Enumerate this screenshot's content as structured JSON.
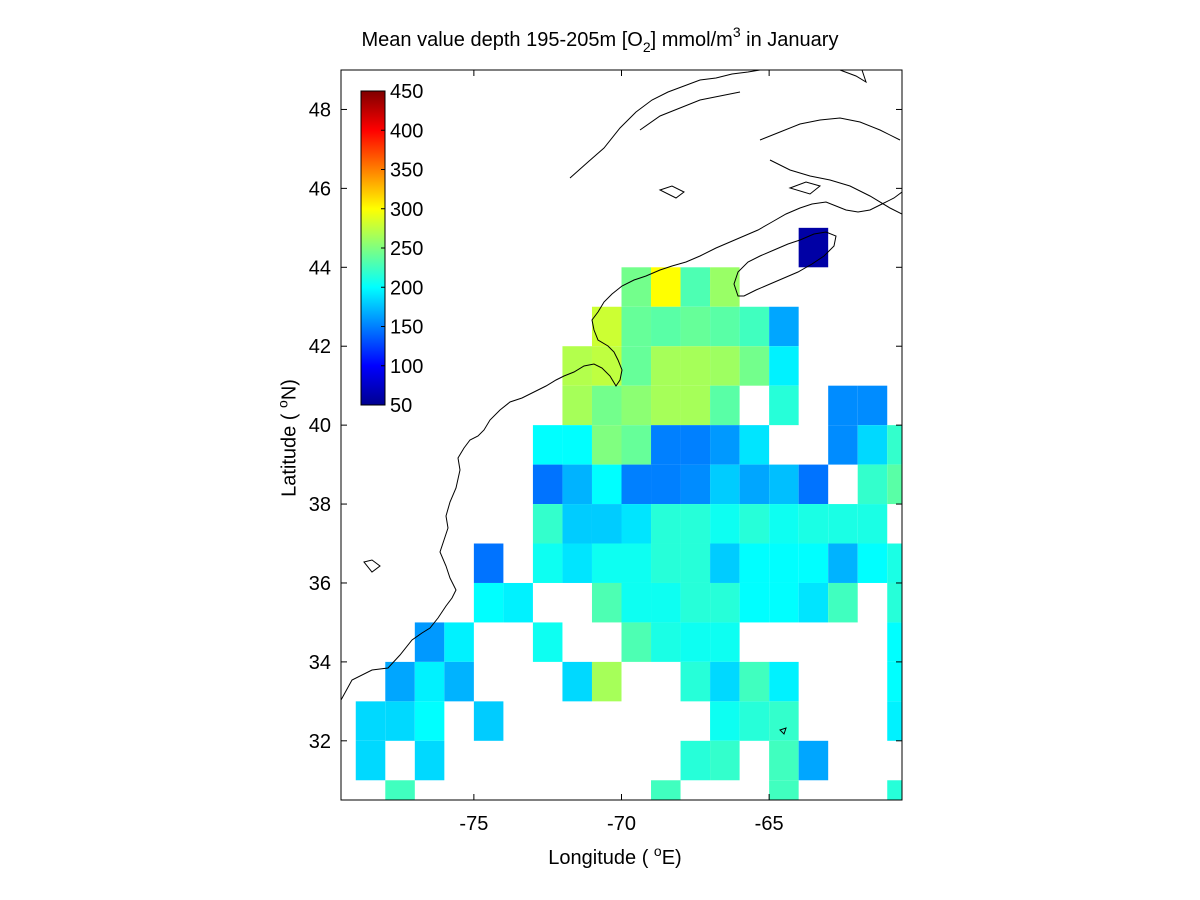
{
  "title": {
    "prefix": "Mean value depth 195-205m [O",
    "subscript": "2",
    "middle": "] mmol/m",
    "superscript": "3",
    "suffix": " in January"
  },
  "xlabel": {
    "prefix": "Longitude ( ",
    "superscript": "o",
    "suffix": "E)"
  },
  "ylabel": {
    "prefix": "Latitude ( ",
    "superscript": "o",
    "suffix": "N)"
  },
  "map": {
    "lon_range": [
      -79.5,
      -60.5
    ],
    "lat_range": [
      30.5,
      49.0
    ],
    "x_ticks": [
      -75,
      -70,
      -65
    ],
    "y_ticks": [
      32,
      34,
      36,
      38,
      40,
      42,
      44,
      46,
      48
    ],
    "colormap": "jet",
    "color_limits": [
      50,
      450
    ],
    "colorbar_ticks": [
      50,
      100,
      150,
      200,
      250,
      300,
      350,
      400,
      450
    ],
    "colorbar_position": "top-left",
    "cell_size_deg": 1,
    "coastline_color": "#000000"
  },
  "chart_data": {
    "type": "heatmap",
    "title": "Mean value depth 195-205m [O2] mmol/m3 in January",
    "xlabel": "Longitude ( oE)",
    "ylabel": "Latitude ( oN)",
    "xlim": [
      -79.5,
      -60.5
    ],
    "ylim": [
      30.5,
      49.0
    ],
    "clim": [
      50,
      450
    ],
    "cells_note": "cells are 1x1 degree boxes given by lower-left corner [lon, lat, value]",
    "cells": [
      [
        -64,
        44,
        60
      ],
      [
        -70,
        43,
        245
      ],
      [
        -69,
        43,
        300
      ],
      [
        -68,
        43,
        230
      ],
      [
        -67,
        43,
        260
      ],
      [
        -71,
        42,
        280
      ],
      [
        -70,
        42,
        240
      ],
      [
        -69,
        42,
        235
      ],
      [
        -68,
        42,
        240
      ],
      [
        -67,
        42,
        235
      ],
      [
        -66,
        42,
        225
      ],
      [
        -65,
        42,
        165
      ],
      [
        -72,
        41,
        270
      ],
      [
        -71,
        41,
        275
      ],
      [
        -70,
        41,
        240
      ],
      [
        -69,
        41,
        265
      ],
      [
        -68,
        41,
        265
      ],
      [
        -67,
        41,
        262
      ],
      [
        -66,
        41,
        245
      ],
      [
        -65,
        41,
        195
      ],
      [
        -72,
        40,
        265
      ],
      [
        -71,
        40,
        245
      ],
      [
        -70,
        40,
        255
      ],
      [
        -69,
        40,
        265
      ],
      [
        -68,
        40,
        265
      ],
      [
        -67,
        40,
        235
      ],
      [
        -65,
        40,
        215
      ],
      [
        -63,
        40,
        155
      ],
      [
        -62,
        40,
        155
      ],
      [
        -73,
        39,
        200
      ],
      [
        -72,
        39,
        200
      ],
      [
        -71,
        39,
        250
      ],
      [
        -70,
        39,
        240
      ],
      [
        -69,
        39,
        150
      ],
      [
        -68,
        39,
        150
      ],
      [
        -67,
        39,
        160
      ],
      [
        -66,
        39,
        190
      ],
      [
        -63,
        39,
        155
      ],
      [
        -62,
        39,
        185
      ],
      [
        -61,
        39,
        220
      ],
      [
        -73,
        38,
        145
      ],
      [
        -72,
        38,
        170
      ],
      [
        -71,
        38,
        200
      ],
      [
        -70,
        38,
        150
      ],
      [
        -69,
        38,
        150
      ],
      [
        -68,
        38,
        155
      ],
      [
        -67,
        38,
        180
      ],
      [
        -66,
        38,
        165
      ],
      [
        -65,
        38,
        175
      ],
      [
        -64,
        38,
        145
      ],
      [
        -62,
        38,
        220
      ],
      [
        -61,
        38,
        235
      ],
      [
        -73,
        37,
        220
      ],
      [
        -72,
        37,
        180
      ],
      [
        -71,
        37,
        180
      ],
      [
        -70,
        37,
        190
      ],
      [
        -69,
        37,
        215
      ],
      [
        -68,
        37,
        215
      ],
      [
        -67,
        37,
        205
      ],
      [
        -66,
        37,
        215
      ],
      [
        -65,
        37,
        205
      ],
      [
        -64,
        37,
        210
      ],
      [
        -63,
        37,
        210
      ],
      [
        -62,
        37,
        210
      ],
      [
        -75,
        36,
        145
      ],
      [
        -73,
        36,
        205
      ],
      [
        -72,
        36,
        190
      ],
      [
        -71,
        36,
        205
      ],
      [
        -70,
        36,
        205
      ],
      [
        -69,
        36,
        215
      ],
      [
        -68,
        36,
        215
      ],
      [
        -67,
        36,
        180
      ],
      [
        -66,
        36,
        200
      ],
      [
        -65,
        36,
        200
      ],
      [
        -64,
        36,
        200
      ],
      [
        -63,
        36,
        170
      ],
      [
        -62,
        36,
        200
      ],
      [
        -61,
        36,
        210
      ],
      [
        -75,
        35,
        200
      ],
      [
        -74,
        35,
        195
      ],
      [
        -71,
        35,
        230
      ],
      [
        -70,
        35,
        205
      ],
      [
        -69,
        35,
        205
      ],
      [
        -68,
        35,
        215
      ],
      [
        -67,
        35,
        215
      ],
      [
        -66,
        35,
        200
      ],
      [
        -65,
        35,
        200
      ],
      [
        -64,
        35,
        190
      ],
      [
        -63,
        35,
        225
      ],
      [
        -61,
        35,
        215
      ],
      [
        -77,
        34,
        160
      ],
      [
        -76,
        34,
        195
      ],
      [
        -73,
        34,
        205
      ],
      [
        -70,
        34,
        230
      ],
      [
        -69,
        34,
        210
      ],
      [
        -68,
        34,
        205
      ],
      [
        -67,
        34,
        205
      ],
      [
        -61,
        34,
        200
      ],
      [
        -78,
        33,
        165
      ],
      [
        -77,
        33,
        195
      ],
      [
        -76,
        33,
        170
      ],
      [
        -72,
        33,
        185
      ],
      [
        -71,
        33,
        265
      ],
      [
        -68,
        33,
        215
      ],
      [
        -67,
        33,
        185
      ],
      [
        -66,
        33,
        225
      ],
      [
        -65,
        33,
        195
      ],
      [
        -61,
        33,
        200
      ],
      [
        -79,
        32,
        185
      ],
      [
        -78,
        32,
        185
      ],
      [
        -77,
        32,
        200
      ],
      [
        -75,
        32,
        180
      ],
      [
        -67,
        32,
        205
      ],
      [
        -66,
        32,
        215
      ],
      [
        -65,
        32,
        220
      ],
      [
        -61,
        32,
        195
      ],
      [
        -79,
        31,
        185
      ],
      [
        -77,
        31,
        185
      ],
      [
        -68,
        31,
        215
      ],
      [
        -67,
        31,
        220
      ],
      [
        -65,
        31,
        225
      ],
      [
        -64,
        31,
        165
      ],
      [
        -78,
        30,
        225
      ],
      [
        -69,
        30,
        225
      ],
      [
        -65,
        30,
        225
      ],
      [
        -61,
        30,
        215
      ]
    ]
  }
}
